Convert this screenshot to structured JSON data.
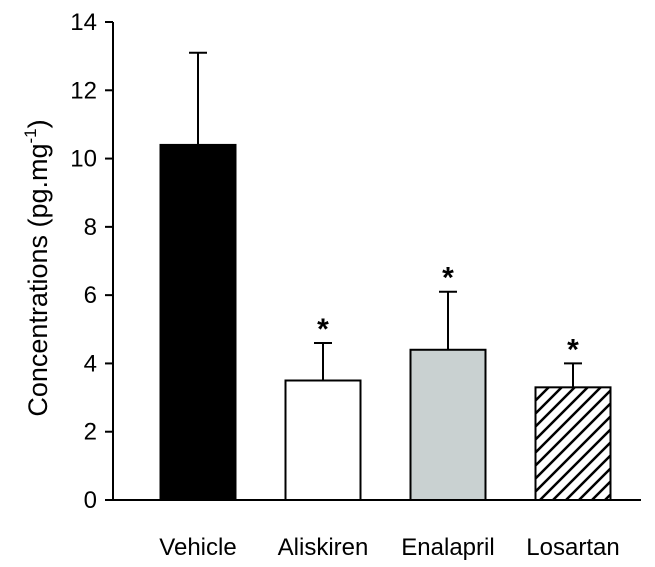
{
  "chart_data": {
    "type": "bar",
    "title": "",
    "xlabel": "",
    "ylabel": {
      "main": "Concentrations (pg.mg",
      "superscript": "-1",
      "close": ")"
    },
    "categories": [
      "Vehicle",
      "Aliskiren",
      "Enalapril",
      "Losartan"
    ],
    "values": [
      10.4,
      3.5,
      4.4,
      3.3
    ],
    "error_upper": [
      2.7,
      1.1,
      1.7,
      0.7
    ],
    "significance": [
      "",
      "*",
      "*",
      "*"
    ],
    "bar_styles": [
      {
        "fill": "#000000",
        "pattern": "solid"
      },
      {
        "fill": "#ffffff",
        "pattern": "solid"
      },
      {
        "fill": "#c9d1d1",
        "pattern": "solid"
      },
      {
        "fill": "#ffffff",
        "pattern": "diagonal-hatch"
      }
    ],
    "ylim": [
      0,
      14
    ],
    "yticks": [
      0,
      2,
      4,
      6,
      8,
      10,
      12,
      14
    ],
    "grid": false,
    "legend": "none"
  }
}
